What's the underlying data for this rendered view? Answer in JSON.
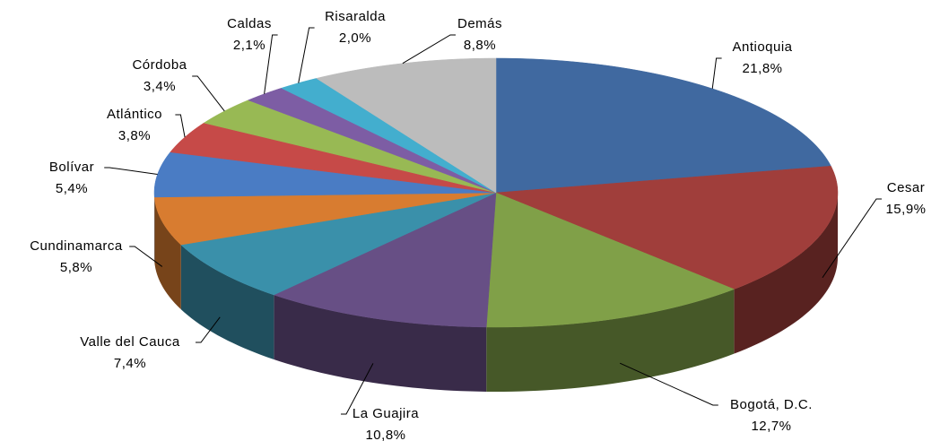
{
  "chart_data": {
    "type": "pie3d",
    "categories": [
      "Antioquia",
      "Cesar",
      "Bogotá, D.C.",
      "La Guajira",
      "Valle del Cauca",
      "Cundinamarca",
      "Bolívar",
      "Atlántico",
      "Córdoba",
      "Caldas",
      "Risaralda",
      "Demás"
    ],
    "values": [
      21.8,
      15.9,
      12.7,
      10.8,
      7.4,
      5.8,
      5.4,
      3.8,
      3.4,
      2.1,
      2.0,
      8.8
    ],
    "value_labels": [
      "21,8%",
      "15,9%",
      "12,7%",
      "10,8%",
      "7,4%",
      "5,8%",
      "5,4%",
      "3,8%",
      "3,4%",
      "2,1%",
      "2,0%",
      "8,8%"
    ],
    "colors": [
      "#4069a0",
      "#a03e3b",
      "#80a048",
      "#674f85",
      "#3a90aa",
      "#d87c30",
      "#4a7cc4",
      "#c64a48",
      "#98b954",
      "#7d5da4",
      "#43aece",
      "#bcbcbc"
    ]
  }
}
